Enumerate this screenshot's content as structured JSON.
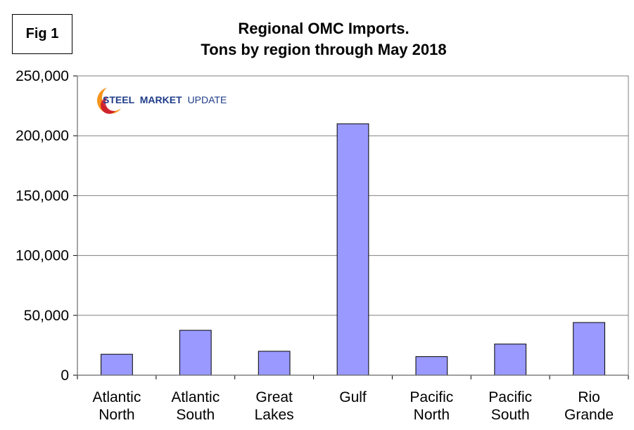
{
  "figure_label": "Fig 1",
  "title_line1": "Regional OMC Imports.",
  "title_line2": "Tons by region through May 2018",
  "logo": {
    "word1": "STEEL",
    "word2": "MARKET",
    "word3": "UPDATE"
  },
  "chart_data": {
    "type": "bar",
    "title": "Regional OMC Imports. Tons by region through May 2018",
    "categories": [
      [
        "Atlantic",
        "North"
      ],
      [
        "Atlantic",
        "South"
      ],
      [
        "Great",
        "Lakes"
      ],
      [
        "Gulf"
      ],
      [
        "Pacific",
        "North"
      ],
      [
        "Pacific",
        "South"
      ],
      [
        "Rio",
        "Grande"
      ]
    ],
    "values": [
      17500,
      37500,
      20000,
      210000,
      15500,
      26000,
      44000
    ],
    "ylim": [
      0,
      250000
    ],
    "yticks": [
      0,
      50000,
      100000,
      150000,
      200000,
      250000
    ],
    "ytick_labels": [
      "0",
      "50,000",
      "100,000",
      "150,000",
      "200,000",
      "250,000"
    ],
    "grid": true,
    "bar_color": "#9999ff",
    "bar_edge": "#000000"
  }
}
